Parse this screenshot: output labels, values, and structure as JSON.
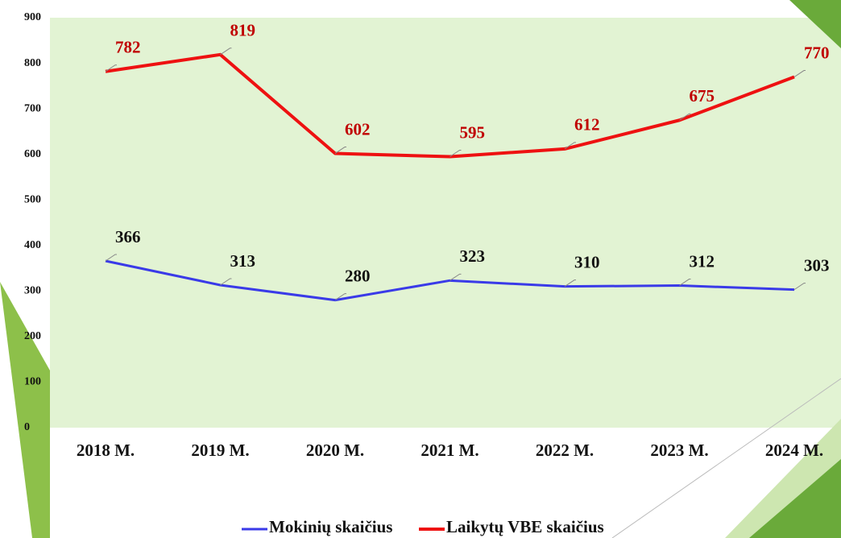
{
  "chart_data": {
    "type": "line",
    "categories": [
      "2018 M.",
      "2019 M.",
      "2020 M.",
      "2021 M.",
      "2022 M.",
      "2023 M.",
      "2024 M."
    ],
    "series": [
      {
        "name": "Mokinių skaičius",
        "color": "#3a3ae8",
        "label_color": "#111111",
        "values": [
          366,
          313,
          280,
          323,
          310,
          312,
          303
        ]
      },
      {
        "name": "Laikytų VBE skaičius",
        "color": "#ee1111",
        "label_color": "#c00000",
        "values": [
          782,
          819,
          602,
          595,
          612,
          675,
          770
        ]
      }
    ],
    "ylim": [
      0,
      900
    ],
    "yticks": [
      0,
      100,
      200,
      300,
      400,
      500,
      600,
      700,
      800,
      900
    ]
  }
}
